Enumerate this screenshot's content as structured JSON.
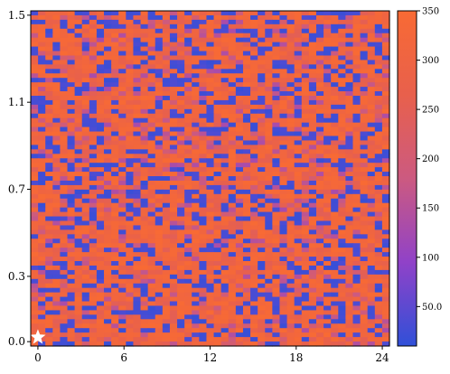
{
  "chart_data": {
    "type": "heatmap",
    "title": "",
    "xlabel": "",
    "ylabel": "",
    "grid": false,
    "cell_columns": 49,
    "cell_rows": 75,
    "x_range": [
      -0.5,
      24.5
    ],
    "y_range": [
      -0.02,
      1.52
    ],
    "x_ticks": [
      {
        "value": 0,
        "label": "0"
      },
      {
        "value": 6,
        "label": "6"
      },
      {
        "value": 12,
        "label": "12"
      },
      {
        "value": 18,
        "label": "18"
      },
      {
        "value": 24,
        "label": "24"
      }
    ],
    "y_ticks": [
      {
        "value": 0.0,
        "label": "0.0"
      },
      {
        "value": 0.3,
        "label": "0.3"
      },
      {
        "value": 0.7,
        "label": "0.7"
      },
      {
        "value": 1.1,
        "label": "1.1"
      },
      {
        "value": 1.5,
        "label": "1.5"
      }
    ],
    "colorbar": {
      "range": [
        10,
        350
      ],
      "ticks": [
        {
          "value": 50,
          "label": "50.0"
        },
        {
          "value": 100,
          "label": "100"
        },
        {
          "value": 150,
          "label": "150"
        },
        {
          "value": 200,
          "label": "200"
        },
        {
          "value": 250,
          "label": "250"
        },
        {
          "value": 300,
          "label": "300"
        },
        {
          "value": 350,
          "label": "350"
        }
      ],
      "colors": [
        "#3050d8",
        "#9042c8",
        "#cc5a80",
        "#e8604c",
        "#f86a34"
      ]
    },
    "marker": {
      "shape": "star",
      "x": 0,
      "y": 0.02,
      "color": "#ffffff"
    }
  }
}
